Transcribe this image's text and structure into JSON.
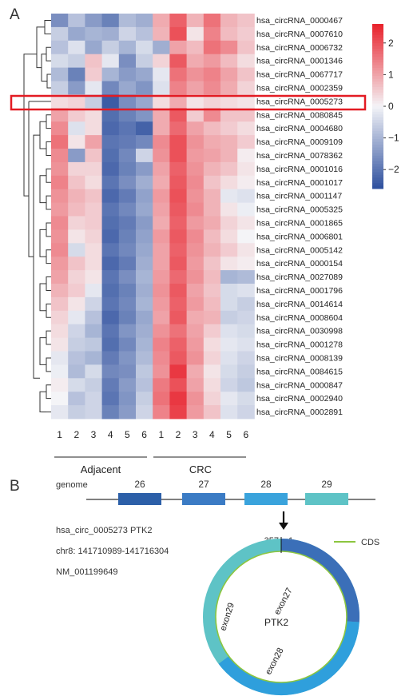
{
  "panel_a": {
    "label": "A",
    "group_labels": [
      "Adjacent",
      "CRC"
    ],
    "sample_numbers": [
      "1",
      "2",
      "3",
      "4",
      "5",
      "6",
      "1",
      "2",
      "3",
      "4",
      "5",
      "6"
    ],
    "highlight_row": "hsa_circRNA_0005273",
    "colorbar": {
      "ticks": [
        2,
        1,
        0,
        -1,
        -2
      ],
      "tick_labels": [
        "2",
        "1",
        "0",
        "−1",
        "−2"
      ],
      "min": -2.6,
      "max": 2.6,
      "colors": {
        "low": "#2d4f9e",
        "mid": "#f4f4f7",
        "high": "#e8202a"
      }
    }
  },
  "chart_data": {
    "type": "heatmap",
    "columns": [
      "Adjacent 1",
      "Adjacent 2",
      "Adjacent 3",
      "Adjacent 4",
      "Adjacent 5",
      "Adjacent 6",
      "CRC 1",
      "CRC 2",
      "CRC 3",
      "CRC 4",
      "CRC 5",
      "CRC 6"
    ],
    "rows": [
      "hsa_circRNA_0000467",
      "hsa_circRNA_0007610",
      "hsa_circRNA_0006732",
      "hsa_circRNA_0001346",
      "hsa_circRNA_0067717",
      "hsa_circRNA_0002359",
      "hsa_circRNA_0005273",
      "hsa_circRNA_0080845",
      "hsa_circRNA_0004680",
      "hsa_circRNA_0009109",
      "hsa_circRNA_0078362",
      "hsa_circRNA_0001016",
      "hsa_circRNA_0001017",
      "hsa_circRNA_0001147",
      "hsa_circRNA_0005325",
      "hsa_circRNA_0001865",
      "hsa_circRNA_0006801",
      "hsa_circRNA_0005142",
      "hsa_circRNA_0000154",
      "hsa_circRNA_0027089",
      "hsa_circRNA_0001796",
      "hsa_circRNA_0014614",
      "hsa_circRNA_0008604",
      "hsa_circRNA_0030998",
      "hsa_circRNA_0001278",
      "hsa_circRNA_0008139",
      "hsa_circRNA_0084615",
      "hsa_circRNA_0000847",
      "hsa_circRNA_0002940",
      "hsa_circRNA_0002891"
    ],
    "values": [
      [
        -1.6,
        -0.8,
        -1.4,
        -1.8,
        -0.9,
        -1.1,
        0.9,
        1.8,
        0.8,
        1.6,
        0.8,
        0.6
      ],
      [
        -0.6,
        -1.2,
        -1.0,
        -1.1,
        -0.5,
        -0.8,
        0.8,
        2.0,
        0.2,
        1.4,
        0.7,
        0.5
      ],
      [
        -0.8,
        -0.3,
        -1.2,
        -0.6,
        -1.0,
        -0.4,
        -1.1,
        1.0,
        0.7,
        1.6,
        1.3,
        0.6
      ],
      [
        -0.4,
        -0.6,
        0.6,
        -0.2,
        -1.6,
        -0.6,
        0.4,
        1.9,
        0.9,
        1.1,
        0.7,
        0.3
      ],
      [
        -0.9,
        -1.8,
        0.5,
        -1.0,
        -1.4,
        -1.2,
        -0.2,
        1.6,
        1.2,
        1.4,
        1.0,
        0.6
      ],
      [
        -0.6,
        -1.4,
        -0.2,
        -1.7,
        -1.2,
        -1.5,
        -0.3,
        1.4,
        1.0,
        1.3,
        0.9,
        0.4
      ],
      [
        0.3,
        0.4,
        -0.6,
        -2.4,
        -1.6,
        -1.2,
        0.3,
        0.9,
        0.2,
        0.4,
        0.3,
        0.2
      ],
      [
        1.0,
        0.5,
        0.3,
        -2.1,
        -1.8,
        -1.5,
        0.9,
        1.9,
        0.5,
        1.3,
        0.6,
        0.6
      ],
      [
        1.3,
        -0.3,
        0.3,
        -2.2,
        -2.0,
        -2.3,
        0.9,
        1.7,
        1.0,
        0.7,
        0.5,
        0.3
      ],
      [
        1.6,
        0.2,
        1.0,
        -2.0,
        -1.9,
        -1.7,
        1.3,
        2.0,
        1.2,
        0.9,
        0.8,
        0.5
      ],
      [
        1.3,
        -1.4,
        0.6,
        -2.1,
        -1.7,
        -0.5,
        1.2,
        2.0,
        1.1,
        1.0,
        0.8,
        0.1
      ],
      [
        1.2,
        0.4,
        0.4,
        -2.2,
        -1.8,
        -1.4,
        1.0,
        1.8,
        1.2,
        0.8,
        0.6,
        0.2
      ],
      [
        1.4,
        0.6,
        0.3,
        -2.0,
        -1.6,
        -1.1,
        0.9,
        1.9,
        1.3,
        0.6,
        0.3,
        0.1
      ],
      [
        1.2,
        0.8,
        0.6,
        -2.2,
        -1.9,
        -1.3,
        1.1,
        2.0,
        1.2,
        0.8,
        -0.2,
        -0.3
      ],
      [
        1.1,
        0.7,
        0.5,
        -2.0,
        -1.7,
        -1.2,
        1.0,
        1.9,
        1.3,
        0.8,
        0.2,
        -0.1
      ],
      [
        1.3,
        0.4,
        0.5,
        -2.1,
        -1.9,
        -1.4,
        0.9,
        1.8,
        1.1,
        0.9,
        0.4,
        0.2
      ],
      [
        1.2,
        0.2,
        0.4,
        -2.2,
        -1.8,
        -1.3,
        1.1,
        1.9,
        1.3,
        0.7,
        0.3,
        0.0
      ],
      [
        1.3,
        -0.4,
        0.3,
        -2.0,
        -1.7,
        -1.2,
        1.0,
        1.8,
        1.2,
        0.8,
        0.5,
        0.2
      ],
      [
        1.1,
        0.6,
        0.3,
        -2.2,
        -1.9,
        -1.1,
        1.0,
        1.9,
        1.1,
        0.6,
        0.2,
        0.1
      ],
      [
        1.0,
        0.4,
        0.2,
        -2.0,
        -1.6,
        -1.0,
        1.1,
        1.7,
        1.2,
        0.7,
        -1.0,
        -0.9
      ],
      [
        0.8,
        0.5,
        -0.2,
        -2.1,
        -1.8,
        -1.1,
        1.2,
        1.9,
        1.0,
        0.6,
        -0.4,
        -0.3
      ],
      [
        0.6,
        0.2,
        -0.5,
        -2.0,
        -1.7,
        -1.0,
        1.1,
        1.8,
        1.1,
        0.7,
        -0.4,
        -0.6
      ],
      [
        0.4,
        -0.2,
        -0.8,
        -2.2,
        -1.8,
        -1.2,
        1.0,
        1.9,
        0.9,
        0.8,
        -0.6,
        -0.5
      ],
      [
        0.3,
        -0.5,
        -1.0,
        -2.0,
        -1.5,
        -1.1,
        1.2,
        1.6,
        1.0,
        0.5,
        -0.3,
        -0.4
      ],
      [
        0.2,
        -0.6,
        -0.7,
        -2.1,
        -1.7,
        -1.0,
        1.4,
        1.8,
        1.1,
        0.3,
        -0.2,
        -0.3
      ],
      [
        -0.2,
        -0.8,
        -1.0,
        -1.9,
        -1.5,
        -0.9,
        1.3,
        1.9,
        1.2,
        0.4,
        -0.3,
        -0.5
      ],
      [
        -0.1,
        -0.9,
        -0.4,
        -1.7,
        -1.6,
        -0.7,
        1.2,
        2.3,
        0.9,
        0.2,
        -0.4,
        -0.6
      ],
      [
        0.1,
        -0.4,
        -0.6,
        -1.9,
        -1.4,
        -0.8,
        1.5,
        2.0,
        1.0,
        0.3,
        -0.5,
        -0.7
      ],
      [
        0.0,
        -0.8,
        -0.5,
        -2.0,
        -1.5,
        -0.6,
        1.6,
        2.3,
        1.2,
        0.4,
        -0.2,
        -0.4
      ],
      [
        -0.2,
        -0.6,
        -0.5,
        -1.8,
        -1.4,
        -0.5,
        1.4,
        2.2,
        1.1,
        0.6,
        -0.3,
        -0.5
      ]
    ]
  },
  "panel_b": {
    "label": "B",
    "genome_label": "genome",
    "exons": [
      {
        "number": "26",
        "color": "#2c5fa8"
      },
      {
        "number": "27",
        "color": "#3b7bc4"
      },
      {
        "number": "28",
        "color": "#3aa3dc"
      },
      {
        "number": "29",
        "color": "#5ec3c6"
      }
    ],
    "circ_info": [
      "hsa_circ_0005273 PTK2",
      "chr8: 141710989-141716304",
      "NM_001199649"
    ],
    "ring_start_label": "357",
    "ring_end_label": "1",
    "center_label": "PTK2",
    "ring_exon_labels": [
      "exon29",
      "exon27",
      "exon28"
    ],
    "legend": {
      "label": "CDS",
      "color": "#8cc63f"
    }
  }
}
